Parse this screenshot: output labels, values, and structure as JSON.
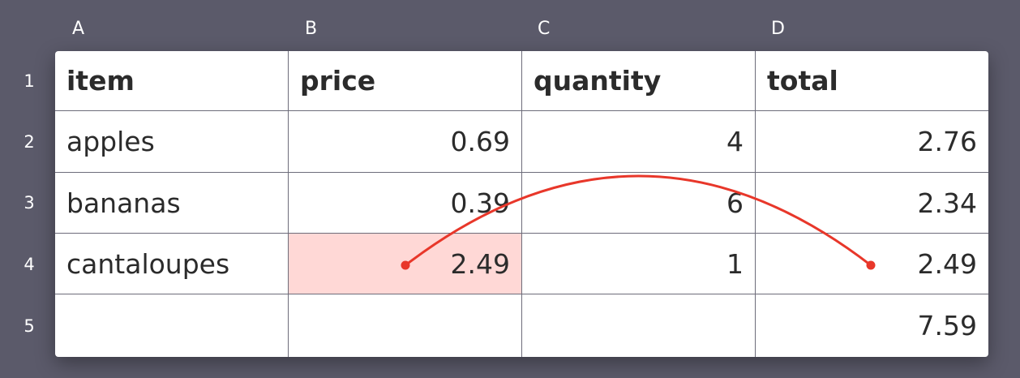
{
  "column_headers": [
    "A",
    "B",
    "C",
    "D"
  ],
  "row_headers": [
    "1",
    "2",
    "3",
    "4",
    "5"
  ],
  "rows": [
    [
      "item",
      "price",
      "quantity",
      "total"
    ],
    [
      "apples",
      "0.69",
      "4",
      "2.76"
    ],
    [
      "bananas",
      "0.39",
      "6",
      "2.34"
    ],
    [
      "cantaloupes",
      "2.49",
      "1",
      "2.49"
    ],
    [
      "",
      "",
      "",
      "7.59"
    ]
  ],
  "selected_cell": "B4",
  "reference_arrow": {
    "from": "B4",
    "to": "D4"
  },
  "colors": {
    "background": "#5b5a6a",
    "sheet": "#ffffff",
    "grid_line": "#6d6c7a",
    "selected_fill": "#ffd8d6",
    "arrow": "#e8372a"
  }
}
